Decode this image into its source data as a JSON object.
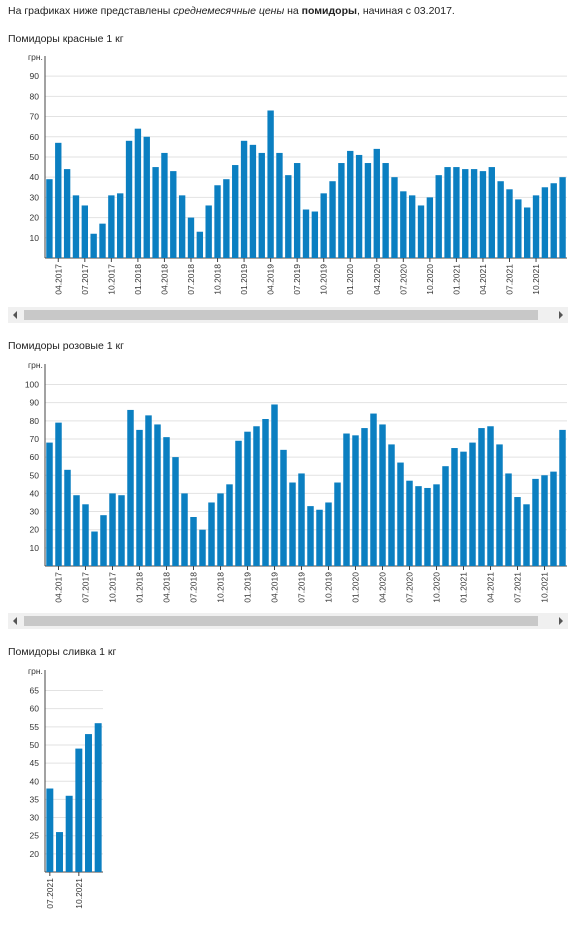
{
  "intro": {
    "part1": "На графиках ниже представлены ",
    "italic": "среднемесячные цены",
    "part2": " на ",
    "bold": "помидоры",
    "part3": ", начиная с 03.2017."
  },
  "chart_data": [
    {
      "type": "bar",
      "title": "Помидоры красные 1 кг",
      "y_label": "грн.",
      "categories": [
        null,
        "04.2017",
        null,
        null,
        "07.2017",
        null,
        null,
        "10.2017",
        null,
        null,
        "01.2018",
        null,
        null,
        "04.2018",
        null,
        null,
        "07.2018",
        null,
        null,
        "10.2018",
        null,
        null,
        "01.2019",
        null,
        null,
        "04.2019",
        null,
        null,
        "07.2019",
        null,
        null,
        "10.2019",
        null,
        null,
        "01.2020",
        null,
        null,
        "04.2020",
        null,
        null,
        "07.2020",
        null,
        null,
        "10.2020",
        null,
        null,
        "01.2021",
        null,
        null,
        "04.2021",
        null,
        null,
        "07.2021",
        null,
        null,
        "10.2021",
        null,
        null,
        null
      ],
      "values": [
        39,
        57,
        44,
        31,
        26,
        12,
        17,
        31,
        32,
        58,
        64,
        60,
        45,
        52,
        43,
        31,
        20,
        13,
        26,
        36,
        39,
        46,
        58,
        56,
        52,
        73,
        52,
        41,
        47,
        24,
        23,
        32,
        38,
        47,
        53,
        51,
        47,
        54,
        47,
        40,
        33,
        31,
        26,
        30,
        41,
        45,
        45,
        44,
        44,
        43,
        45,
        38,
        34,
        29,
        25,
        31,
        35,
        37,
        40
      ],
      "color": "#0b7fc1",
      "ylim": [
        0,
        97
      ],
      "yticks": [
        10,
        20,
        30,
        40,
        50,
        60,
        70,
        80,
        90
      ],
      "grid": true
    },
    {
      "type": "bar",
      "title": "Помидоры розовые 1 кг",
      "y_label": "грн.",
      "categories": [
        null,
        "04.2017",
        null,
        null,
        "07.2017",
        null,
        null,
        "10.2017",
        null,
        null,
        "01.2018",
        null,
        null,
        "04.2018",
        null,
        null,
        "07.2018",
        null,
        null,
        "10.2018",
        null,
        null,
        "01.2019",
        null,
        null,
        "04.2019",
        null,
        null,
        "07.2019",
        null,
        null,
        "10.2019",
        null,
        null,
        "01.2020",
        null,
        null,
        "04.2020",
        null,
        null,
        "07.2020",
        null,
        null,
        "10.2020",
        null,
        null,
        "01.2021",
        null,
        null,
        "04.2021",
        null,
        null,
        "07.2021",
        null,
        null,
        "10.2021",
        null,
        null
      ],
      "values": [
        68,
        79,
        53,
        39,
        34,
        19,
        28,
        40,
        39,
        86,
        75,
        83,
        78,
        71,
        60,
        40,
        27,
        20,
        35,
        40,
        45,
        69,
        74,
        77,
        81,
        89,
        64,
        46,
        51,
        33,
        31,
        35,
        46,
        73,
        72,
        76,
        84,
        78,
        67,
        57,
        47,
        44,
        43,
        45,
        55,
        65,
        63,
        68,
        76,
        77,
        67,
        51,
        38,
        34,
        48,
        50,
        52,
        75
      ],
      "color": "#0b7fc1",
      "ylim": [
        0,
        108
      ],
      "yticks": [
        10,
        20,
        30,
        40,
        50,
        60,
        70,
        80,
        90,
        100
      ],
      "grid": true
    },
    {
      "type": "bar",
      "title": "Помидоры сливка 1 кг",
      "y_label": "грн.",
      "categories": [
        "07.2021",
        null,
        null,
        "10.2021",
        null,
        null
      ],
      "values": [
        38,
        26,
        36,
        49,
        53,
        56
      ],
      "color": "#0b7fc1",
      "ylim": [
        15,
        69
      ],
      "yticks": [
        20,
        25,
        30,
        35,
        40,
        45,
        50,
        55,
        60,
        65
      ],
      "grid": true
    }
  ]
}
